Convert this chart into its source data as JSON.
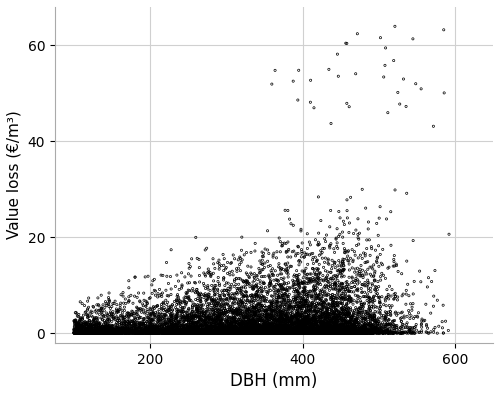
{
  "xlabel": "DBH (mm)",
  "ylabel": "Value loss (€/m³)",
  "xlim": [
    75,
    650
  ],
  "ylim": [
    -2,
    68
  ],
  "xticks": [
    200,
    400,
    600
  ],
  "yticks": [
    0,
    20,
    40,
    60
  ],
  "background_color": "#ffffff",
  "grid_color": "#d0d0d0",
  "marker_color": "black",
  "marker_size": 2.5,
  "marker_linewidth": 0.5,
  "n_points": 12000,
  "xlabel_fontsize": 12,
  "ylabel_fontsize": 11,
  "tick_fontsize": 10
}
